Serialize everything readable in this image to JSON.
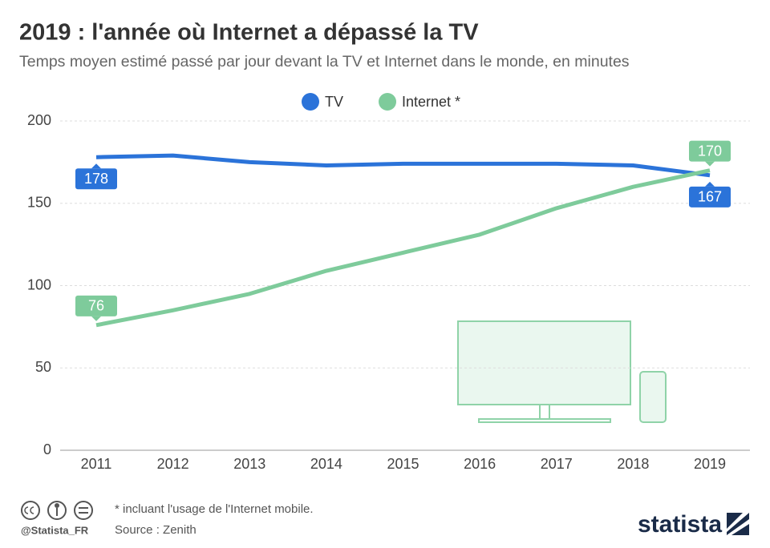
{
  "chart_data": {
    "type": "line",
    "title": "2019 : l'année où Internet a dépassé la TV",
    "subtitle": "Temps moyen estimé passé par jour devant la TV et Internet dans le monde, en minutes",
    "categories": [
      "2011",
      "2012",
      "2013",
      "2014",
      "2015",
      "2016",
      "2017",
      "2018",
      "2019"
    ],
    "series": [
      {
        "name": "TV",
        "color": "#2b73d9",
        "values": [
          178,
          179,
          175,
          173,
          174,
          174,
          174,
          173,
          167
        ]
      },
      {
        "name": "Internet *",
        "color": "#7ecb9b",
        "values": [
          76,
          85,
          95,
          109,
          120,
          131,
          147,
          160,
          170
        ]
      }
    ],
    "ylim": [
      0,
      200
    ],
    "yticks": [
      0,
      50,
      100,
      150,
      200
    ],
    "grid": true,
    "note": "* incluant l'usage de l'Internet mobile.",
    "source": "Source : Zenith",
    "handle": "@Statista_FR",
    "brand": "statista"
  }
}
